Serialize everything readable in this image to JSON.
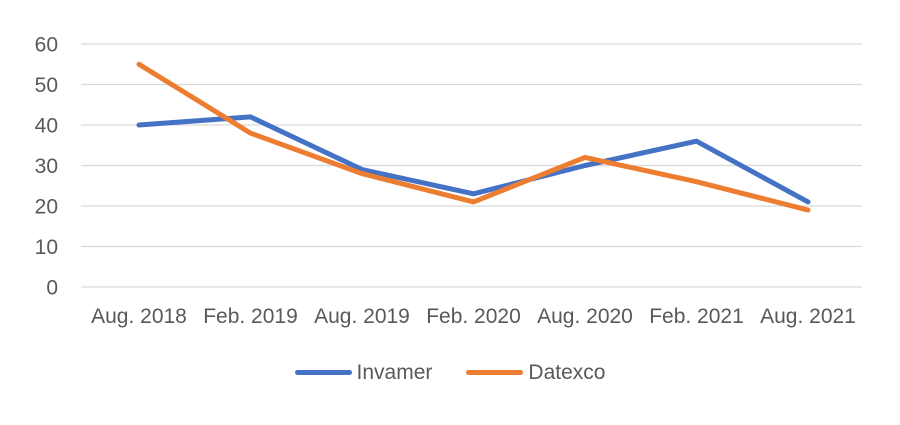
{
  "chart_data": {
    "type": "line",
    "title": "",
    "categories": [
      "Aug. 2018",
      "Feb. 2019",
      "Aug. 2019",
      "Feb. 2020",
      "Aug. 2020",
      "Feb. 2021",
      "Aug. 2021"
    ],
    "series": [
      {
        "name": "Invamer",
        "color": "#4472C4",
        "values": [
          40,
          42,
          29,
          23,
          30,
          36,
          21
        ]
      },
      {
        "name": "Datexco",
        "color": "#ED7D31",
        "values": [
          55,
          38,
          28,
          21,
          32,
          26,
          19
        ]
      }
    ],
    "xlabel": "",
    "ylabel": "",
    "ylim": [
      0,
      60
    ],
    "yticks": [
      0,
      10,
      20,
      30,
      40,
      50,
      60
    ],
    "grid": "horizontal",
    "gridline_color": "#D9D9D9",
    "axis_label_color": "#595959",
    "line_width": 5,
    "legend_position": "bottom"
  }
}
